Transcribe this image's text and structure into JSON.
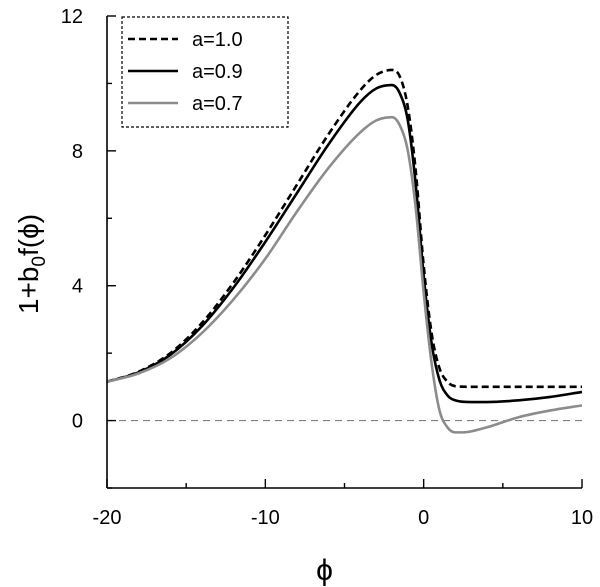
{
  "chart_data": {
    "type": "line",
    "xlabel": "ϕ",
    "ylabel_parts": {
      "prefix": "1+b",
      "subscript": "0",
      "suffix": "f(ϕ)"
    },
    "xlim": [
      -20,
      10
    ],
    "ylim": [
      -2,
      12
    ],
    "xticks": [
      -20,
      -10,
      0,
      10
    ],
    "yticks": [
      0,
      4,
      8,
      12
    ],
    "x_minor_step": 5,
    "y_minor_step": 2,
    "reference_line": {
      "y": 0,
      "style": "dashed",
      "color": "#808080"
    },
    "legend": {
      "placement": "top-left",
      "boxed": true
    },
    "series": [
      {
        "name": "a=1.0",
        "color": "#000000",
        "style": "dashed",
        "x": [
          -20,
          -18,
          -16,
          -14,
          -12,
          -10,
          -8,
          -6,
          -4,
          -3,
          -2,
          -1.5,
          -1,
          -0.5,
          0,
          0.5,
          1,
          1.5,
          2,
          3,
          4,
          6,
          8,
          10
        ],
        "y": [
          1.15,
          1.45,
          2.0,
          2.9,
          4.1,
          5.5,
          7.0,
          8.5,
          9.8,
          10.25,
          10.4,
          10.2,
          9.3,
          7.4,
          4.6,
          2.6,
          1.55,
          1.15,
          1.02,
          1.0,
          1.0,
          1.0,
          1.0,
          1.0
        ]
      },
      {
        "name": "a=0.9",
        "color": "#000000",
        "style": "solid",
        "x": [
          -20,
          -18,
          -16,
          -14,
          -12,
          -10,
          -8,
          -6,
          -4,
          -3,
          -2,
          -1.5,
          -1,
          -0.5,
          0,
          0.5,
          1,
          1.5,
          2,
          3,
          4,
          6,
          8,
          10
        ],
        "y": [
          1.15,
          1.43,
          1.95,
          2.8,
          3.95,
          5.3,
          6.75,
          8.2,
          9.45,
          9.85,
          9.95,
          9.7,
          8.9,
          7.0,
          4.3,
          2.3,
          1.2,
          0.75,
          0.6,
          0.55,
          0.55,
          0.6,
          0.7,
          0.85
        ]
      },
      {
        "name": "a=0.7",
        "color": "#8c8c8c",
        "style": "solid",
        "x": [
          -20,
          -18,
          -16,
          -14,
          -12,
          -10,
          -8,
          -6,
          -4,
          -3,
          -2,
          -1.5,
          -1,
          -0.5,
          0,
          0.5,
          1,
          1.5,
          2,
          2.5,
          3,
          4,
          6,
          8,
          10
        ],
        "y": [
          1.15,
          1.4,
          1.85,
          2.6,
          3.6,
          4.8,
          6.2,
          7.5,
          8.55,
          8.9,
          9.0,
          8.75,
          8.0,
          6.3,
          3.8,
          1.7,
          0.3,
          -0.2,
          -0.35,
          -0.35,
          -0.32,
          -0.2,
          0.1,
          0.3,
          0.45
        ]
      }
    ]
  }
}
